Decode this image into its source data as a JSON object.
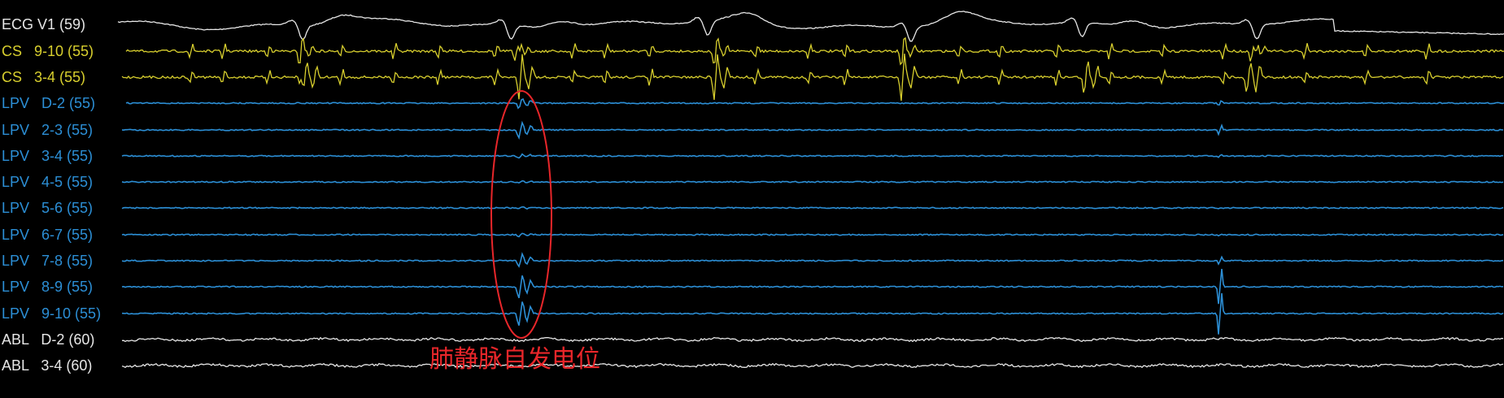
{
  "channels": [
    {
      "id": "ecg-v1",
      "label": "ECG V1 (59)",
      "color": "#e6e6e6",
      "type": "ecg"
    },
    {
      "id": "cs-9-10",
      "label": "CS   9-10 (55)",
      "color": "#d8cf2e",
      "type": "cs"
    },
    {
      "id": "cs-3-4",
      "label": "CS   3-4 (55)",
      "color": "#d8cf2e",
      "type": "cs"
    },
    {
      "id": "lpv-d-2",
      "label": "LPV   D-2 (55)",
      "color": "#2c8fd6",
      "type": "pv"
    },
    {
      "id": "lpv-2-3",
      "label": "LPV   2-3 (55)",
      "color": "#2c8fd6",
      "type": "pv"
    },
    {
      "id": "lpv-3-4",
      "label": "LPV   3-4 (55)",
      "color": "#2c8fd6",
      "type": "pv"
    },
    {
      "id": "lpv-4-5",
      "label": "LPV   4-5 (55)",
      "color": "#2c8fd6",
      "type": "pv"
    },
    {
      "id": "lpv-5-6",
      "label": "LPV   5-6 (55)",
      "color": "#2c8fd6",
      "type": "pv"
    },
    {
      "id": "lpv-6-7",
      "label": "LPV   6-7 (55)",
      "color": "#2c8fd6",
      "type": "pv"
    },
    {
      "id": "lpv-7-8",
      "label": "LPV   7-8 (55)",
      "color": "#2c8fd6",
      "type": "pv"
    },
    {
      "id": "lpv-8-9",
      "label": "LPV   8-9 (55)",
      "color": "#2c8fd6",
      "type": "pv"
    },
    {
      "id": "lpv-9-10",
      "label": "LPV   9-10 (55)",
      "color": "#2c8fd6",
      "type": "pv"
    },
    {
      "id": "abl-d-2",
      "label": "ABL   D-2 (60)",
      "color": "#e6e6e6",
      "type": "abl"
    },
    {
      "id": "abl-3-4",
      "label": "ABL   3-4 (60)",
      "color": "#e6e6e6",
      "type": "abl"
    }
  ],
  "annotation": {
    "text": "肺静脉自发电位",
    "color": "#e8262a"
  },
  "colors": {
    "background": "#000000",
    "ecg": "#e6e6e6",
    "cs": "#d8cf2e",
    "pv": "#2c8fd6",
    "abl": "#e6e6e6",
    "highlight": "#e8262a"
  }
}
